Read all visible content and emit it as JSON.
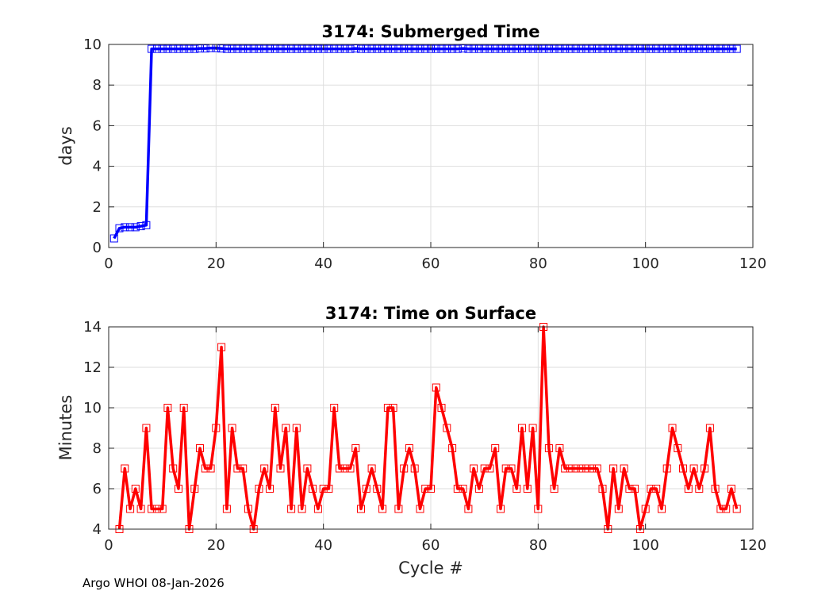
{
  "footer": "Argo WHOI 08-Jan-2026",
  "chart_data": [
    {
      "type": "line",
      "title": "3174: Submerged Time",
      "xlabel": "",
      "ylabel": "days",
      "xlim": [
        0,
        120
      ],
      "ylim": [
        0,
        10
      ],
      "xticks": [
        0,
        20,
        40,
        60,
        80,
        100,
        120
      ],
      "yticks": [
        0,
        2,
        4,
        6,
        8,
        10
      ],
      "grid": true,
      "series": [
        {
          "name": "Submerged Time",
          "color": "#0000ff",
          "marker": "square",
          "x": [
            1,
            2,
            3,
            4,
            5,
            6,
            7,
            8,
            9,
            10,
            11,
            12,
            13,
            14,
            15,
            16,
            17,
            18,
            19,
            20,
            21,
            22,
            23,
            24,
            25,
            26,
            27,
            28,
            29,
            30,
            31,
            32,
            33,
            34,
            35,
            36,
            37,
            38,
            39,
            40,
            41,
            42,
            43,
            44,
            45,
            46,
            47,
            48,
            49,
            50,
            51,
            52,
            53,
            54,
            55,
            56,
            57,
            58,
            59,
            60,
            61,
            62,
            63,
            64,
            65,
            66,
            67,
            68,
            69,
            70,
            71,
            72,
            73,
            74,
            75,
            76,
            77,
            78,
            79,
            80,
            81,
            82,
            83,
            84,
            85,
            86,
            87,
            88,
            89,
            90,
            91,
            92,
            93,
            94,
            95,
            96,
            97,
            98,
            99,
            100,
            101,
            102,
            103,
            104,
            105,
            106,
            107,
            108,
            109,
            110,
            111,
            112,
            113,
            114,
            115,
            116,
            117
          ],
          "y": [
            0.45,
            0.95,
            1.0,
            1.0,
            1.0,
            1.05,
            1.1,
            9.78,
            9.78,
            9.78,
            9.78,
            9.78,
            9.78,
            9.78,
            9.78,
            9.78,
            9.8,
            9.8,
            9.82,
            9.82,
            9.8,
            9.78,
            9.78,
            9.78,
            9.78,
            9.78,
            9.78,
            9.78,
            9.78,
            9.78,
            9.78,
            9.78,
            9.78,
            9.78,
            9.78,
            9.78,
            9.78,
            9.78,
            9.78,
            9.78,
            9.78,
            9.78,
            9.78,
            9.78,
            9.78,
            9.8,
            9.78,
            9.78,
            9.78,
            9.78,
            9.78,
            9.78,
            9.78,
            9.78,
            9.78,
            9.78,
            9.78,
            9.78,
            9.78,
            9.78,
            9.78,
            9.78,
            9.78,
            9.78,
            9.78,
            9.8,
            9.78,
            9.78,
            9.78,
            9.78,
            9.78,
            9.78,
            9.78,
            9.78,
            9.78,
            9.78,
            9.78,
            9.78,
            9.78,
            9.78,
            9.78,
            9.78,
            9.78,
            9.78,
            9.78,
            9.78,
            9.78,
            9.78,
            9.78,
            9.78,
            9.78,
            9.78,
            9.78,
            9.78,
            9.78,
            9.78,
            9.78,
            9.78,
            9.78,
            9.78,
            9.78,
            9.78,
            9.78,
            9.78,
            9.78,
            9.78,
            9.78,
            9.78,
            9.78,
            9.78,
            9.78,
            9.78,
            9.78,
            9.78,
            9.78,
            9.78,
            9.78
          ]
        }
      ]
    },
    {
      "type": "line",
      "title": "3174: Time on Surface",
      "xlabel": "Cycle #",
      "ylabel": "Minutes",
      "xlim": [
        0,
        120
      ],
      "ylim": [
        4,
        14
      ],
      "xticks": [
        0,
        20,
        40,
        60,
        80,
        100,
        120
      ],
      "yticks": [
        4,
        6,
        8,
        10,
        12,
        14
      ],
      "grid": true,
      "series": [
        {
          "name": "Time on Surface",
          "color": "#ff0000",
          "marker": "square",
          "x": [
            2,
            3,
            4,
            5,
            6,
            7,
            8,
            9,
            10,
            11,
            12,
            13,
            14,
            15,
            16,
            17,
            18,
            19,
            20,
            21,
            22,
            23,
            24,
            25,
            26,
            27,
            28,
            29,
            30,
            31,
            32,
            33,
            34,
            35,
            36,
            37,
            38,
            39,
            40,
            41,
            42,
            43,
            44,
            45,
            46,
            47,
            48,
            49,
            50,
            51,
            52,
            53,
            54,
            55,
            56,
            57,
            58,
            59,
            60,
            61,
            62,
            63,
            64,
            65,
            66,
            67,
            68,
            69,
            70,
            71,
            72,
            73,
            74,
            75,
            76,
            77,
            78,
            79,
            80,
            81,
            82,
            83,
            84,
            85,
            86,
            87,
            88,
            89,
            90,
            91,
            92,
            93,
            94,
            95,
            96,
            97,
            98,
            99,
            100,
            101,
            102,
            103,
            104,
            105,
            106,
            107,
            108,
            109,
            110,
            111,
            112,
            113,
            114,
            115,
            116,
            117
          ],
          "y": [
            4,
            7,
            5,
            6,
            5,
            9,
            5,
            5,
            5,
            10,
            7,
            6,
            10,
            4,
            6,
            8,
            7,
            7,
            9,
            13,
            5,
            9,
            7,
            7,
            5,
            4,
            6,
            7,
            6,
            10,
            7,
            9,
            5,
            9,
            5,
            7,
            6,
            5,
            6,
            6,
            10,
            7,
            7,
            7,
            8,
            5,
            6,
            7,
            6,
            5,
            10,
            10,
            5,
            7,
            8,
            7,
            5,
            6,
            6,
            11,
            10,
            9,
            8,
            6,
            6,
            5,
            7,
            6,
            7,
            7,
            8,
            5,
            7,
            7,
            6,
            9,
            6,
            9,
            5,
            14,
            8,
            6,
            8,
            7,
            7,
            7,
            7,
            7,
            7,
            7,
            6,
            4,
            7,
            5,
            7,
            6,
            6,
            4,
            5,
            6,
            6,
            5,
            7,
            9,
            8,
            7,
            6,
            7,
            6,
            7,
            9,
            6,
            5,
            5,
            6,
            5
          ]
        }
      ]
    }
  ]
}
